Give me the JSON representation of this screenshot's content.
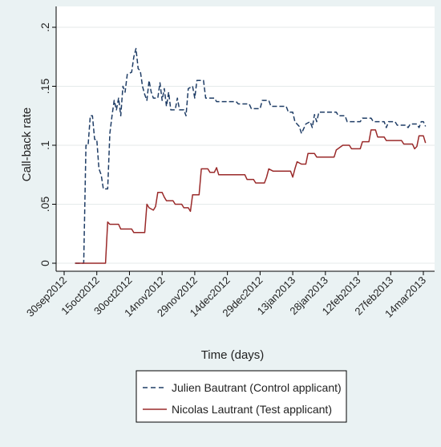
{
  "chart_data": {
    "type": "line",
    "title": "",
    "xlabel": "Time (days)",
    "ylabel": "Call-back rate",
    "x_is_date": true,
    "xlim": [
      "2012-09-30",
      "2013-03-17"
    ],
    "ylim": [
      0,
      0.2
    ],
    "y_ticks": [
      0,
      0.05,
      0.1,
      0.15,
      0.2
    ],
    "y_tick_labels": [
      "0",
      ".05",
      ".1",
      ".15",
      ".2"
    ],
    "x_ticks": [
      "2012-09-30",
      "2012-10-15",
      "2012-10-30",
      "2012-11-14",
      "2012-11-29",
      "2012-12-14",
      "2012-12-29",
      "2013-01-13",
      "2013-01-28",
      "2013-02-12",
      "2013-02-27",
      "2013-03-14"
    ],
    "x_tick_labels": [
      "30sep2012",
      "15oct2012",
      "30oct2012",
      "14nov2012",
      "29nov2012",
      "14dec2012",
      "29dec2012",
      "13jan2013",
      "28jan2013",
      "12feb2013",
      "27feb2013",
      "14mar2013"
    ],
    "grid": true,
    "legend_position": "bottom",
    "series": [
      {
        "name": "Julien Bautrant (Control applicant)",
        "color": "#1f3d66",
        "style": "dashed",
        "points": [
          [
            "2012-10-05",
            0
          ],
          [
            "2012-10-09",
            0
          ],
          [
            "2012-10-10",
            0.1
          ],
          [
            "2012-10-11",
            0.1
          ],
          [
            "2012-10-12",
            0.125
          ],
          [
            "2012-10-13",
            0.125
          ],
          [
            "2012-10-14",
            0.105
          ],
          [
            "2012-10-15",
            0.105
          ],
          [
            "2012-10-16",
            0.08
          ],
          [
            "2012-10-17",
            0.075
          ],
          [
            "2012-10-18",
            0.063
          ],
          [
            "2012-10-20",
            0.063
          ],
          [
            "2012-10-21",
            0.11
          ],
          [
            "2012-10-22",
            0.125
          ],
          [
            "2012-10-23",
            0.138
          ],
          [
            "2012-10-24",
            0.13
          ],
          [
            "2012-10-25",
            0.14
          ],
          [
            "2012-10-26",
            0.125
          ],
          [
            "2012-10-27",
            0.15
          ],
          [
            "2012-10-28",
            0.145
          ],
          [
            "2012-10-29",
            0.16
          ],
          [
            "2012-10-31",
            0.162
          ],
          [
            "2012-11-01",
            0.175
          ],
          [
            "2012-11-02",
            0.182
          ],
          [
            "2012-11-03",
            0.165
          ],
          [
            "2012-11-04",
            0.163
          ],
          [
            "2012-11-05",
            0.15
          ],
          [
            "2012-11-06",
            0.143
          ],
          [
            "2012-11-07",
            0.138
          ],
          [
            "2012-11-08",
            0.155
          ],
          [
            "2012-11-09",
            0.145
          ],
          [
            "2012-11-10",
            0.14
          ],
          [
            "2012-11-12",
            0.14
          ],
          [
            "2012-11-13",
            0.153
          ],
          [
            "2012-11-14",
            0.138
          ],
          [
            "2012-11-15",
            0.148
          ],
          [
            "2012-11-16",
            0.133
          ],
          [
            "2012-11-17",
            0.145
          ],
          [
            "2012-11-18",
            0.13
          ],
          [
            "2012-11-20",
            0.13
          ],
          [
            "2012-11-21",
            0.14
          ],
          [
            "2012-11-22",
            0.13
          ],
          [
            "2012-11-24",
            0.13
          ],
          [
            "2012-11-25",
            0.125
          ],
          [
            "2012-11-26",
            0.148
          ],
          [
            "2012-11-28",
            0.15
          ],
          [
            "2012-11-29",
            0.14
          ],
          [
            "2012-11-30",
            0.155
          ],
          [
            "2012-12-03",
            0.155
          ],
          [
            "2012-12-04",
            0.14
          ],
          [
            "2012-12-08",
            0.14
          ],
          [
            "2012-12-09",
            0.137
          ],
          [
            "2012-12-18",
            0.137
          ],
          [
            "2012-12-19",
            0.135
          ],
          [
            "2012-12-24",
            0.135
          ],
          [
            "2012-12-25",
            0.131
          ],
          [
            "2012-12-29",
            0.131
          ],
          [
            "2012-12-30",
            0.138
          ],
          [
            "2013-01-02",
            0.138
          ],
          [
            "2013-01-03",
            0.133
          ],
          [
            "2013-01-10",
            0.133
          ],
          [
            "2013-01-11",
            0.128
          ],
          [
            "2013-01-13",
            0.128
          ],
          [
            "2013-01-14",
            0.12
          ],
          [
            "2013-01-16",
            0.116
          ],
          [
            "2013-01-17",
            0.11
          ],
          [
            "2013-01-19",
            0.118
          ],
          [
            "2013-01-21",
            0.12
          ],
          [
            "2013-01-22",
            0.115
          ],
          [
            "2013-01-23",
            0.126
          ],
          [
            "2013-01-24",
            0.12
          ],
          [
            "2013-01-25",
            0.128
          ],
          [
            "2013-02-02",
            0.128
          ],
          [
            "2013-02-03",
            0.125
          ],
          [
            "2013-02-06",
            0.125
          ],
          [
            "2013-02-07",
            0.12
          ],
          [
            "2013-02-13",
            0.12
          ],
          [
            "2013-02-14",
            0.123
          ],
          [
            "2013-02-18",
            0.123
          ],
          [
            "2013-02-19",
            0.12
          ],
          [
            "2013-02-24",
            0.12
          ],
          [
            "2013-02-25",
            0.115
          ],
          [
            "2013-02-26",
            0.12
          ],
          [
            "2013-03-01",
            0.12
          ],
          [
            "2013-03-02",
            0.117
          ],
          [
            "2013-03-06",
            0.117
          ],
          [
            "2013-03-07",
            0.115
          ],
          [
            "2013-03-08",
            0.118
          ],
          [
            "2013-03-11",
            0.118
          ],
          [
            "2013-03-12",
            0.115
          ],
          [
            "2013-03-13",
            0.12
          ],
          [
            "2013-03-14",
            0.12
          ],
          [
            "2013-03-15",
            0.116
          ]
        ]
      },
      {
        "name": "Nicolas Lautrant (Test applicant)",
        "color": "#9a2a2a",
        "style": "solid",
        "points": [
          [
            "2012-10-05",
            0
          ],
          [
            "2012-10-19",
            0
          ],
          [
            "2012-10-20",
            0.035
          ],
          [
            "2012-10-21",
            0.033
          ],
          [
            "2012-10-25",
            0.033
          ],
          [
            "2012-10-26",
            0.029
          ],
          [
            "2012-10-31",
            0.029
          ],
          [
            "2012-11-01",
            0.026
          ],
          [
            "2012-11-06",
            0.026
          ],
          [
            "2012-11-07",
            0.05
          ],
          [
            "2012-11-08",
            0.047
          ],
          [
            "2012-11-10",
            0.045
          ],
          [
            "2012-11-11",
            0.048
          ],
          [
            "2012-11-12",
            0.06
          ],
          [
            "2012-11-14",
            0.06
          ],
          [
            "2012-11-15",
            0.056
          ],
          [
            "2012-11-16",
            0.053
          ],
          [
            "2012-11-19",
            0.053
          ],
          [
            "2012-11-20",
            0.05
          ],
          [
            "2012-11-23",
            0.05
          ],
          [
            "2012-11-24",
            0.047
          ],
          [
            "2012-11-26",
            0.047
          ],
          [
            "2012-11-27",
            0.044
          ],
          [
            "2012-11-28",
            0.058
          ],
          [
            "2012-12-01",
            0.058
          ],
          [
            "2012-12-02",
            0.08
          ],
          [
            "2012-12-05",
            0.08
          ],
          [
            "2012-12-06",
            0.077
          ],
          [
            "2012-12-08",
            0.077
          ],
          [
            "2012-12-09",
            0.081
          ],
          [
            "2012-12-10",
            0.075
          ],
          [
            "2012-12-22",
            0.075
          ],
          [
            "2012-12-23",
            0.071
          ],
          [
            "2012-12-26",
            0.071
          ],
          [
            "2012-12-27",
            0.068
          ],
          [
            "2012-12-31",
            0.068
          ],
          [
            "2013-01-01",
            0.073
          ],
          [
            "2013-01-02",
            0.08
          ],
          [
            "2013-01-04",
            0.078
          ],
          [
            "2013-01-12",
            0.078
          ],
          [
            "2013-01-13",
            0.073
          ],
          [
            "2013-01-14",
            0.08
          ],
          [
            "2013-01-15",
            0.086
          ],
          [
            "2013-01-17",
            0.084
          ],
          [
            "2013-01-19",
            0.084
          ],
          [
            "2013-01-20",
            0.093
          ],
          [
            "2013-01-23",
            0.093
          ],
          [
            "2013-01-24",
            0.09
          ],
          [
            "2013-02-01",
            0.09
          ],
          [
            "2013-02-02",
            0.096
          ],
          [
            "2013-02-05",
            0.1
          ],
          [
            "2013-02-08",
            0.1
          ],
          [
            "2013-02-09",
            0.097
          ],
          [
            "2013-02-13",
            0.097
          ],
          [
            "2013-02-14",
            0.103
          ],
          [
            "2013-02-17",
            0.103
          ],
          [
            "2013-02-18",
            0.113
          ],
          [
            "2013-02-20",
            0.113
          ],
          [
            "2013-02-21",
            0.107
          ],
          [
            "2013-02-24",
            0.107
          ],
          [
            "2013-02-25",
            0.104
          ],
          [
            "2013-03-04",
            0.104
          ],
          [
            "2013-03-05",
            0.101
          ],
          [
            "2013-03-09",
            0.101
          ],
          [
            "2013-03-10",
            0.097
          ],
          [
            "2013-03-11",
            0.099
          ],
          [
            "2013-03-12",
            0.108
          ],
          [
            "2013-03-14",
            0.108
          ],
          [
            "2013-03-15",
            0.102
          ]
        ]
      }
    ]
  }
}
